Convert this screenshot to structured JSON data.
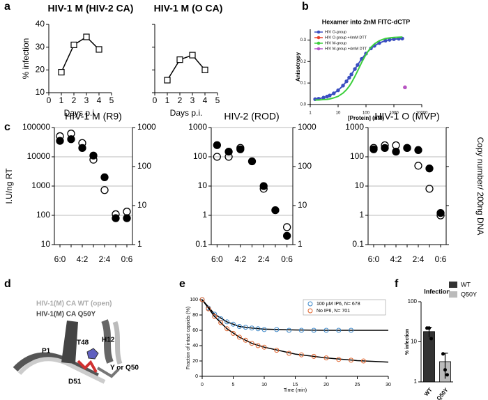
{
  "panel_labels": [
    "a",
    "b",
    "c",
    "d",
    "e",
    "f"
  ],
  "panel_d": {
    "labels": [
      "HIV-1(M) CA WT (open)",
      "HIV-1(M) CA Q50Y",
      "P1",
      "T48",
      "H12",
      "D51",
      "Y or Q50"
    ]
  },
  "chart_data": [
    {
      "type": "line",
      "title": "HIV-1 M (HIV-2 CA)",
      "ylabel": "% infection",
      "xlabel": "Days p.i.",
      "x": [
        1,
        2,
        3,
        4
      ],
      "values": [
        19,
        31,
        34.5,
        29
      ],
      "color": "#000000",
      "xlim": [
        0,
        5
      ],
      "xticks": [
        0,
        1,
        2,
        3,
        4,
        5
      ],
      "ylim": [
        10,
        40
      ],
      "yticks": [
        10,
        20,
        30,
        40
      ]
    },
    {
      "type": "line",
      "title": "HIV-1 M (O CA)",
      "xlabel": "Days p.i.",
      "x": [
        1,
        2,
        3,
        4
      ],
      "values": [
        15.5,
        24.5,
        26.5,
        20
      ],
      "color": "#000000",
      "xlim": [
        0,
        5
      ],
      "xticks": [
        0,
        1,
        2,
        3,
        4,
        5
      ],
      "ylim": [
        10,
        40
      ],
      "yticks": [
        10,
        20,
        30,
        40
      ],
      "ytick_labels": false
    },
    {
      "type": "scatter",
      "title": "Hexamer into 2nM FITC-dCTP",
      "ylabel": "Anisotropy",
      "xlabel": "[Protein] (nM)",
      "xlog": true,
      "xlim": [
        1,
        10000
      ],
      "xticks": [
        1,
        10,
        100,
        1000,
        10000
      ],
      "ylim": [
        0,
        0.35
      ],
      "yticks": [
        {
          "value": 0,
          "label": "0.0"
        },
        0.1,
        0.2,
        0.3
      ],
      "legend": "upper left",
      "series": [
        {
          "name": "HIV O-group",
          "color": "#3b4fc0",
          "markers": true,
          "x": [
            1.5,
            2,
            3,
            4,
            5,
            7,
            10,
            15,
            20,
            25,
            30,
            40,
            50,
            70,
            100,
            150,
            200,
            300,
            500,
            700,
            1000,
            1500,
            2000
          ],
          "values": [
            0.025,
            0.027,
            0.032,
            0.037,
            0.042,
            0.052,
            0.066,
            0.088,
            0.108,
            0.125,
            0.14,
            0.165,
            0.184,
            0.212,
            0.237,
            0.261,
            0.273,
            0.286,
            0.297,
            0.301,
            0.304,
            0.306,
            0.307
          ]
        },
        {
          "name": "HIV O-group +4mM DTT",
          "color": "#e8412c",
          "markers": true,
          "line": false,
          "x": [
            2500
          ],
          "values": [
            0.08
          ]
        },
        {
          "name": "HIV M-group",
          "color": "#3ccf3c",
          "markers": false,
          "x": [
            1.5,
            2,
            3,
            4,
            5,
            7,
            10,
            15,
            20,
            25,
            30,
            40,
            50,
            70,
            100,
            150,
            200,
            300,
            500,
            700,
            1000,
            1500,
            2000
          ],
          "values": [
            0.021,
            0.021,
            0.023,
            0.024,
            0.026,
            0.031,
            0.038,
            0.053,
            0.069,
            0.085,
            0.101,
            0.131,
            0.156,
            0.196,
            0.233,
            0.266,
            0.282,
            0.297,
            0.307,
            0.31,
            0.312,
            0.313,
            0.314
          ]
        },
        {
          "name": "HIV M-group +4mM DTT",
          "color": "#b455c8",
          "markers": true,
          "line": false,
          "x": [
            2500
          ],
          "values": [
            0.08
          ]
        }
      ]
    },
    {
      "type": "dot",
      "title": "HIV-1 M (R9)",
      "ylabel": "I.U/ng RT",
      "categories": [
        "6:0",
        null,
        "4:2",
        null,
        "2:4",
        null,
        "0:6"
      ],
      "ylog": true,
      "ylim": [
        10,
        100000
      ],
      "yticks": [
        10,
        100,
        1000,
        10000,
        100000
      ],
      "y2log": true,
      "y2lim": [
        1,
        1000
      ],
      "y2ticks": [
        1,
        10,
        100,
        1000
      ],
      "grid": true,
      "series": [
        {
          "axis": "y",
          "marker": "filled",
          "color": "#000000",
          "values": [
            35000,
            40000,
            20000,
            11000,
            2000,
            80,
            80
          ]
        },
        {
          "axis": "y2",
          "marker": "open",
          "color": "#000000",
          "values": [
            600,
            700,
            400,
            150,
            25,
            6,
            7
          ]
        }
      ]
    },
    {
      "type": "dot",
      "title": "HIV-2 (ROD)",
      "categories": [
        "6:0",
        null,
        "4:2",
        null,
        "2:4",
        null,
        "0:6"
      ],
      "ylog": true,
      "ylim": [
        0.1,
        1000
      ],
      "yticks": [
        0.1,
        1,
        10,
        100,
        1000
      ],
      "y2log": true,
      "y2lim": [
        1,
        1000
      ],
      "y2ticks": [
        1,
        10,
        100,
        1000
      ],
      "grid": true,
      "series": [
        {
          "axis": "y",
          "marker": "filled",
          "color": "#000000",
          "values": [
            250,
            150,
            180,
            70,
            10,
            1.5,
            0.2
          ]
        },
        {
          "axis": "y2",
          "marker": "open",
          "color": "#000000",
          "values": [
            178,
            178,
            300,
            null,
            27,
            null,
            2.8
          ]
        }
      ]
    },
    {
      "type": "dot",
      "title": "HIV-1 O (MVP)",
      "y2label": "Copy number/ 200ng DNA",
      "categories": [
        "6:0",
        null,
        "4:2",
        null,
        "2:4",
        null,
        "0:6"
      ],
      "ylog": true,
      "ylim": [
        0.1,
        1000
      ],
      "yticks": [
        0.1,
        1,
        10,
        100,
        1000
      ],
      "y2log": true,
      "y2lim": [
        1,
        1000
      ],
      "y2ticks": [
        1,
        10,
        100,
        1000
      ],
      "y2tick_labels": false,
      "grid": true,
      "series": [
        {
          "axis": "y",
          "marker": "filled",
          "color": "#000000",
          "values": [
            180,
            200,
            150,
            200,
            170,
            40,
            1.2
          ]
        },
        {
          "axis": "y2",
          "marker": "open",
          "color": "#000000",
          "values": [
            300,
            350,
            350,
            300,
            105,
            27,
            5.6
          ]
        }
      ]
    },
    {
      "type": "scatter",
      "ylabel": "Fraction of intact capsids (%)",
      "xlabel": "Time (min)",
      "xlim": [
        0,
        30
      ],
      "xticks": [
        0,
        5,
        10,
        15,
        20,
        25,
        30
      ],
      "ylim": [
        0,
        100
      ],
      "yticks": [
        0,
        20,
        40,
        60,
        80,
        100
      ],
      "legend": "upper right",
      "open_markers": true,
      "series": [
        {
          "name": "100 µM IP6, N= 678",
          "color": "#3a86c8",
          "markers": true,
          "line": false,
          "x": [
            0,
            1,
            2,
            3,
            4,
            5,
            6,
            7,
            8,
            9,
            10,
            12,
            14,
            16,
            18,
            20,
            22,
            24
          ],
          "values": [
            100,
            89,
            81,
            75,
            71,
            68,
            65,
            64,
            63,
            62,
            61,
            61,
            60,
            60,
            60,
            60,
            60,
            60
          ],
          "fit_x": [
            0,
            2,
            4,
            6,
            8,
            10,
            15,
            20,
            25,
            30
          ],
          "fit_values": [
            100,
            81,
            71,
            65,
            63,
            61.5,
            60.5,
            60,
            60,
            60
          ]
        },
        {
          "name": "No IP6, N= 701",
          "color": "#e0622a",
          "markers": true,
          "line": false,
          "x": [
            0,
            1,
            2,
            3,
            4,
            5,
            6,
            7,
            8,
            9,
            10,
            12,
            14,
            16,
            18,
            20,
            22,
            24,
            26
          ],
          "values": [
            100,
            88,
            78,
            70,
            62,
            56,
            51,
            47,
            43,
            40,
            38,
            34,
            30,
            28,
            26,
            24,
            22,
            21,
            20
          ],
          "fit_x": [
            0,
            2,
            4,
            6,
            8,
            10,
            15,
            20,
            25,
            30
          ],
          "fit_values": [
            100,
            78,
            62,
            51,
            43,
            38,
            29,
            24,
            20.5,
            18.5
          ]
        }
      ]
    },
    {
      "type": "bar",
      "title": "Infection",
      "ylabel": "% infection",
      "categories": [
        "WT",
        "Q50Y"
      ],
      "values": [
        18,
        3.2
      ],
      "errors": [
        5,
        2
      ],
      "points": [
        [
          22,
          22,
          12
        ],
        [
          5,
          2,
          1.5
        ]
      ],
      "colors": [
        "#333333",
        "#bbbbbb"
      ],
      "ylog": true,
      "ylim": [
        1,
        100
      ],
      "yticks": [
        1,
        10,
        100
      ],
      "legend": "outside right"
    }
  ]
}
